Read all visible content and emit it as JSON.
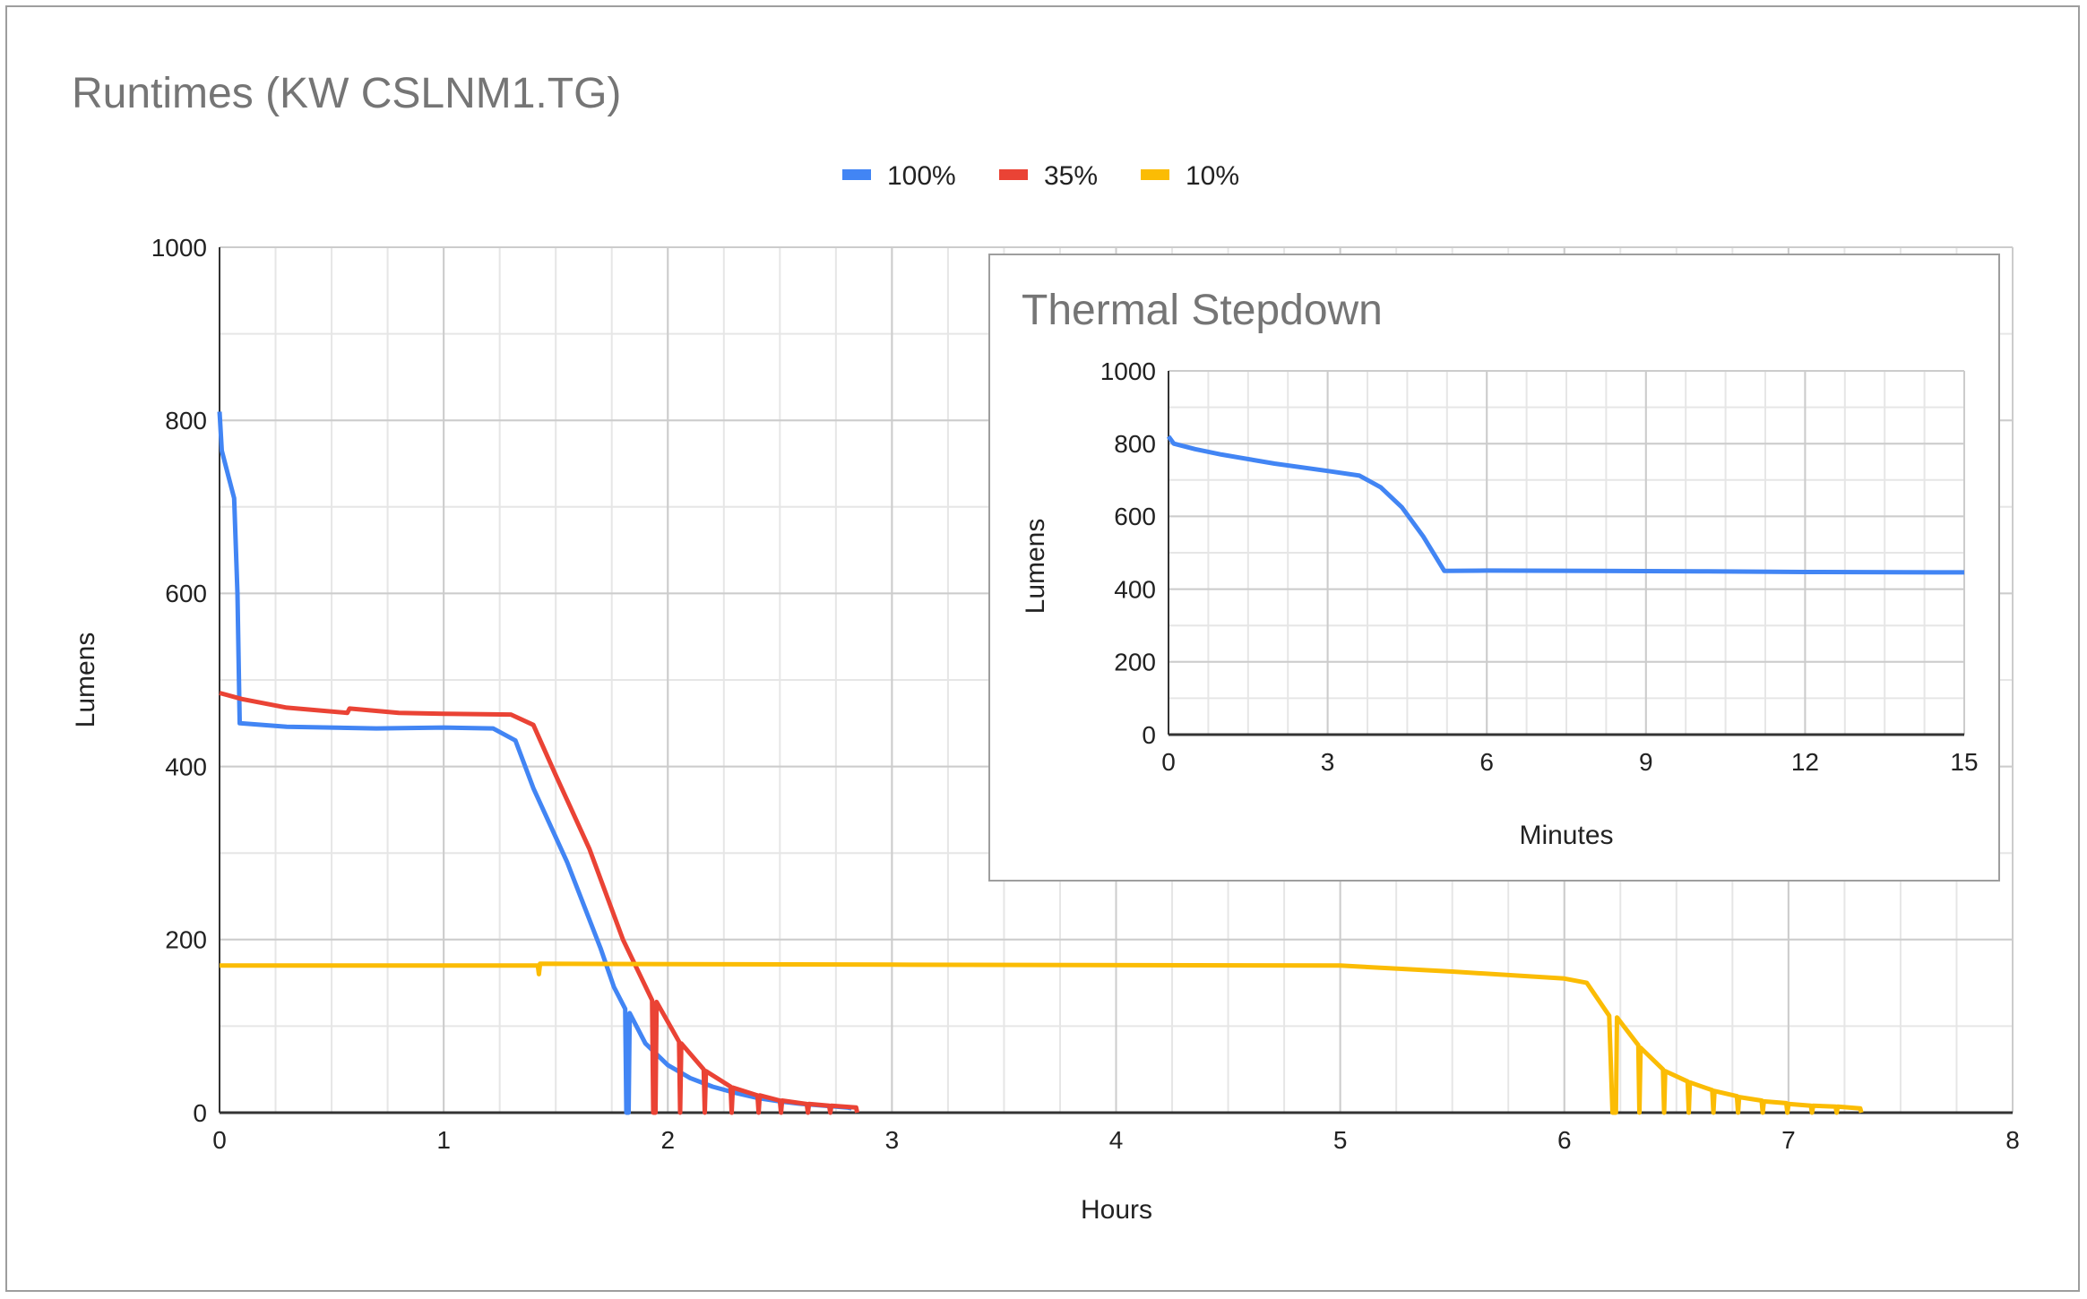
{
  "chart_data": [
    {
      "type": "line",
      "title": "Runtimes (KW CSLNM1.TG)",
      "xlabel": "Hours",
      "ylabel": "Lumens",
      "xlim": [
        0,
        8
      ],
      "ylim": [
        0,
        1000
      ],
      "xticks": [
        "0",
        "1",
        "2",
        "3",
        "4",
        "5",
        "6",
        "7",
        "8"
      ],
      "yticks": [
        "0",
        "200",
        "400",
        "600",
        "800",
        "1000"
      ],
      "grid": true,
      "legend_position": "top",
      "series": [
        {
          "name": "100%",
          "color": "#4285f4",
          "points": [
            [
              0,
              810
            ],
            [
              0.01,
              765
            ],
            [
              0.04,
              735
            ],
            [
              0.065,
              710
            ],
            [
              0.08,
              600
            ],
            [
              0.09,
              450
            ],
            [
              0.3,
              446
            ],
            [
              0.7,
              444
            ],
            [
              1.0,
              445
            ],
            [
              1.22,
              444
            ],
            [
              1.32,
              430
            ],
            [
              1.4,
              375
            ],
            [
              1.55,
              290
            ],
            [
              1.7,
              190
            ],
            [
              1.76,
              145
            ],
            [
              1.81,
              120
            ],
            [
              1.815,
              0
            ],
            [
              1.825,
              0
            ],
            [
              1.83,
              115
            ],
            [
              1.9,
              80
            ],
            [
              2.0,
              55
            ],
            [
              2.1,
              40
            ],
            [
              2.2,
              30
            ],
            [
              2.3,
              23
            ],
            [
              2.4,
              17
            ],
            [
              2.5,
              13
            ],
            [
              2.6,
              10
            ],
            [
              2.7,
              8
            ],
            [
              2.8,
              6
            ],
            [
              2.82,
              5
            ]
          ]
        },
        {
          "name": "35%",
          "color": "#ea4335",
          "points": [
            [
              0,
              485
            ],
            [
              0.1,
              478
            ],
            [
              0.3,
              468
            ],
            [
              0.57,
              462
            ],
            [
              0.58,
              467
            ],
            [
              0.8,
              462
            ],
            [
              1.0,
              461
            ],
            [
              1.3,
              460
            ],
            [
              1.4,
              448
            ],
            [
              1.5,
              390
            ],
            [
              1.65,
              305
            ],
            [
              1.8,
              200
            ],
            [
              1.93,
              130
            ],
            [
              1.935,
              0
            ],
            [
              1.945,
              0
            ],
            [
              1.95,
              128
            ],
            [
              2.05,
              82
            ],
            [
              2.055,
              0
            ],
            [
              2.06,
              80
            ],
            [
              2.16,
              50
            ],
            [
              2.165,
              0
            ],
            [
              2.17,
              48
            ],
            [
              2.28,
              30
            ],
            [
              2.285,
              0
            ],
            [
              2.29,
              29
            ],
            [
              2.4,
              20
            ],
            [
              2.405,
              0
            ],
            [
              2.41,
              20
            ],
            [
              2.5,
              14
            ],
            [
              2.505,
              0
            ],
            [
              2.51,
              14
            ],
            [
              2.62,
              10
            ],
            [
              2.625,
              0
            ],
            [
              2.63,
              10
            ],
            [
              2.72,
              8
            ],
            [
              2.725,
              0
            ],
            [
              2.73,
              8
            ],
            [
              2.84,
              6
            ],
            [
              2.845,
              0
            ]
          ]
        },
        {
          "name": "10%",
          "color": "#fbbc04",
          "points": [
            [
              0,
              170
            ],
            [
              1.42,
              170
            ],
            [
              1.425,
              160
            ],
            [
              1.43,
              172
            ],
            [
              3.0,
              171
            ],
            [
              5.0,
              170
            ],
            [
              5.5,
              163
            ],
            [
              6.0,
              155
            ],
            [
              6.1,
              150
            ],
            [
              6.2,
              112
            ],
            [
              6.215,
              0
            ],
            [
              6.23,
              0
            ],
            [
              6.235,
              110
            ],
            [
              6.33,
              78
            ],
            [
              6.335,
              0
            ],
            [
              6.34,
              75
            ],
            [
              6.44,
              50
            ],
            [
              6.445,
              0
            ],
            [
              6.45,
              48
            ],
            [
              6.55,
              36
            ],
            [
              6.555,
              0
            ],
            [
              6.56,
              35
            ],
            [
              6.66,
              26
            ],
            [
              6.665,
              0
            ],
            [
              6.67,
              25
            ],
            [
              6.77,
              19
            ],
            [
              6.775,
              0
            ],
            [
              6.78,
              18
            ],
            [
              6.88,
              14
            ],
            [
              6.885,
              0
            ],
            [
              6.89,
              13
            ],
            [
              6.99,
              11
            ],
            [
              6.995,
              0
            ],
            [
              7.0,
              10
            ],
            [
              7.1,
              8
            ],
            [
              7.105,
              0
            ],
            [
              7.11,
              8
            ],
            [
              7.21,
              7
            ],
            [
              7.215,
              0
            ],
            [
              7.22,
              7
            ],
            [
              7.32,
              5
            ],
            [
              7.325,
              0
            ]
          ]
        }
      ]
    },
    {
      "type": "line",
      "title": "Thermal Stepdown",
      "xlabel": "Minutes",
      "ylabel": "Lumens",
      "xlim": [
        0,
        15
      ],
      "ylim": [
        0,
        1000
      ],
      "xticks": [
        "0",
        "3",
        "6",
        "9",
        "12",
        "15"
      ],
      "yticks": [
        "0",
        "200",
        "400",
        "600",
        "800",
        "1000"
      ],
      "grid": true,
      "series": [
        {
          "name": "100%",
          "color": "#4285f4",
          "points": [
            [
              0,
              820
            ],
            [
              0.1,
              800
            ],
            [
              0.5,
              785
            ],
            [
              1,
              770
            ],
            [
              2,
              745
            ],
            [
              3,
              725
            ],
            [
              3.6,
              712
            ],
            [
              4,
              680
            ],
            [
              4.4,
              625
            ],
            [
              4.8,
              545
            ],
            [
              5.2,
              450
            ],
            [
              6,
              451
            ],
            [
              8,
              450
            ],
            [
              10,
              449
            ],
            [
              12,
              447
            ],
            [
              15,
              446
            ]
          ]
        }
      ]
    }
  ]
}
